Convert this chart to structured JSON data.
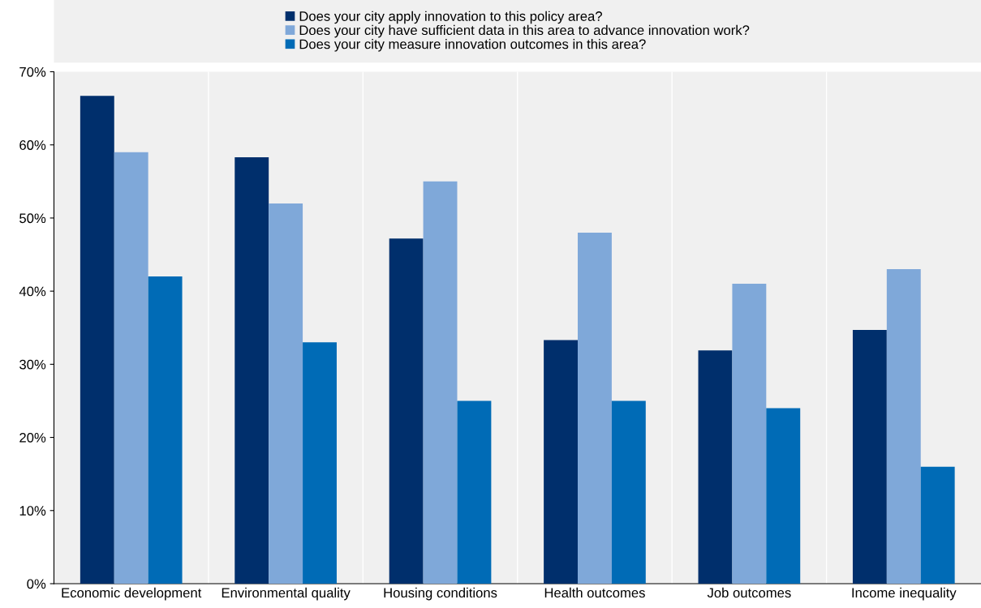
{
  "chart_data": {
    "type": "bar",
    "categories": [
      "Economic development",
      "Environmental quality",
      "Housing conditions",
      "Health outcomes",
      "Job outcomes",
      "Income inequality"
    ],
    "series": [
      {
        "name": "Does your city apply innovation to this policy area?",
        "color": "#002f6c",
        "values": [
          66.7,
          58.3,
          47.2,
          33.3,
          31.9,
          34.7
        ]
      },
      {
        "name": "Does your city have sufficient data in this area to advance innovation work?",
        "color": "#7fa8d9",
        "values": [
          59,
          52,
          55,
          48,
          41,
          43
        ]
      },
      {
        "name": "Does your city measure innovation outcomes in this area?",
        "color": "#006bb6",
        "values": [
          42,
          33,
          25,
          25,
          24,
          16
        ]
      }
    ],
    "ylim": [
      0,
      70
    ],
    "yticks": [
      {
        "value": 0,
        "label": "0%"
      },
      {
        "value": 10,
        "label": "10%"
      },
      {
        "value": 20,
        "label": "20%"
      },
      {
        "value": 30,
        "label": "30%"
      },
      {
        "value": 40,
        "label": "40%"
      },
      {
        "value": 50,
        "label": "50%"
      },
      {
        "value": 60,
        "label": "60%"
      },
      {
        "value": 70,
        "label": "70%"
      }
    ],
    "grid": "x",
    "legend": "top"
  }
}
